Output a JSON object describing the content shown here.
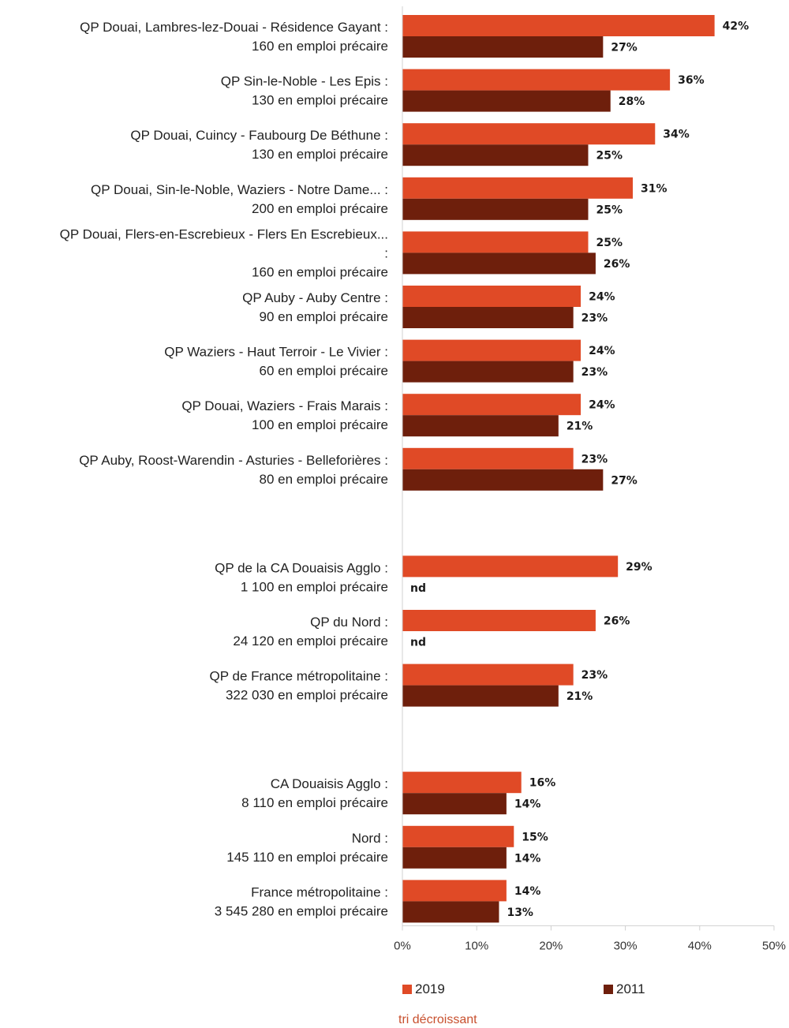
{
  "chart_data": {
    "type": "bar",
    "orientation": "horizontal",
    "xlim": [
      0,
      50
    ],
    "xticks": [
      "0%",
      "10%",
      "20%",
      "30%",
      "40%",
      "50%"
    ],
    "grid": false,
    "legend_position": "bottom",
    "series": [
      {
        "name": "2019",
        "color": "#e04a26"
      },
      {
        "name": "2011",
        "color": "#6e1f0c"
      }
    ],
    "groups": [
      {
        "categories": [
          {
            "label": [
              "QP Douai, Lambres-lez-Douai - Résidence Gayant :",
              "160 en emploi précaire"
            ],
            "values": [
              42,
              27
            ],
            "value_labels": [
              "42%",
              "27%"
            ]
          },
          {
            "label": [
              "QP Sin-le-Noble - Les Epis :",
              "130 en emploi précaire"
            ],
            "values": [
              36,
              28
            ],
            "value_labels": [
              "36%",
              "28%"
            ]
          },
          {
            "label": [
              "QP Douai, Cuincy - Faubourg De Béthune :",
              "130 en emploi précaire"
            ],
            "values": [
              34,
              25
            ],
            "value_labels": [
              "34%",
              "25%"
            ]
          },
          {
            "label": [
              "QP Douai, Sin-le-Noble, Waziers - Notre Dame... :",
              "200 en emploi précaire"
            ],
            "values": [
              31,
              25
            ],
            "value_labels": [
              "31%",
              "25%"
            ]
          },
          {
            "label": [
              "QP Douai, Flers-en-Escrebieux - Flers En Escrebieux...",
              ":",
              "160 en emploi précaire"
            ],
            "values": [
              25,
              26
            ],
            "value_labels": [
              "25%",
              "26%"
            ]
          },
          {
            "label": [
              "QP Auby - Auby Centre :",
              "90 en emploi précaire"
            ],
            "values": [
              24,
              23
            ],
            "value_labels": [
              "24%",
              "23%"
            ]
          },
          {
            "label": [
              "QP Waziers - Haut Terroir - Le Vivier :",
              "60 en emploi précaire"
            ],
            "values": [
              24,
              23
            ],
            "value_labels": [
              "24%",
              "23%"
            ]
          },
          {
            "label": [
              "QP Douai, Waziers - Frais Marais :",
              "100 en emploi précaire"
            ],
            "values": [
              24,
              21
            ],
            "value_labels": [
              "24%",
              "21%"
            ]
          },
          {
            "label": [
              "QP Auby, Roost-Warendin - Asturies - Belleforières :",
              "80 en emploi précaire"
            ],
            "values": [
              23,
              27
            ],
            "value_labels": [
              "23%",
              "27%"
            ]
          }
        ]
      },
      {
        "categories": [
          {
            "label": [
              "QP de la CA Douaisis Agglo :",
              "1 100 en emploi précaire"
            ],
            "values": [
              29,
              null
            ],
            "value_labels": [
              "29%",
              "nd"
            ]
          },
          {
            "label": [
              "QP du Nord :",
              "24 120 en emploi précaire"
            ],
            "values": [
              26,
              null
            ],
            "value_labels": [
              "26%",
              "nd"
            ]
          },
          {
            "label": [
              "QP de France métropolitaine :",
              "322 030 en emploi précaire"
            ],
            "values": [
              23,
              21
            ],
            "value_labels": [
              "23%",
              "21%"
            ]
          }
        ]
      },
      {
        "categories": [
          {
            "label": [
              "CA Douaisis Agglo :",
              "8 110 en emploi précaire"
            ],
            "values": [
              16,
              14
            ],
            "value_labels": [
              "16%",
              "14%"
            ]
          },
          {
            "label": [
              "Nord :",
              "145 110 en emploi précaire"
            ],
            "values": [
              15,
              14
            ],
            "value_labels": [
              "15%",
              "14%"
            ]
          },
          {
            "label": [
              "France métropolitaine :",
              "3 545 280 en emploi précaire"
            ],
            "values": [
              14,
              13
            ],
            "value_labels": [
              "14%",
              "13%"
            ]
          }
        ]
      }
    ]
  },
  "legend": {
    "items": [
      "2019",
      "2011"
    ]
  },
  "footer_note": "tri décroissant"
}
